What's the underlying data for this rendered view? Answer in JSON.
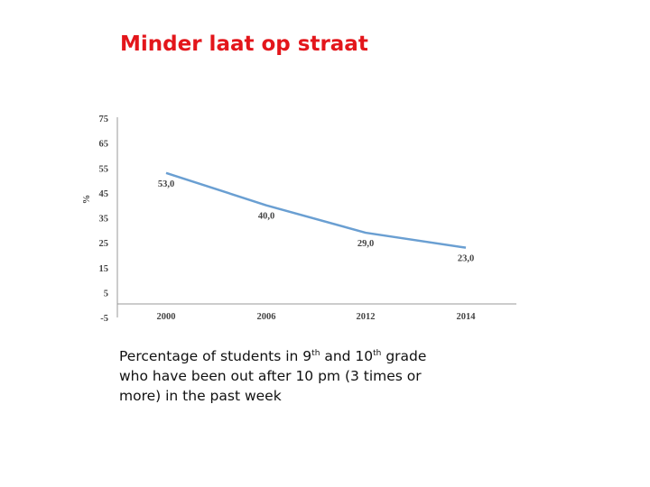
{
  "slide": {
    "title": "Minder laat op straat"
  },
  "caption": {
    "part1": "Percentage of students in 9",
    "sup1": "th",
    "part2": " and 10",
    "sup2": "th",
    "part3": " grade who have been out after 10 pm (3 times or more) in the past week"
  },
  "chart_data": {
    "type": "line",
    "title": "",
    "xlabel": "",
    "ylabel": "%",
    "categories": [
      "2000",
      "2006",
      "2012",
      "2014"
    ],
    "series": [
      {
        "values": [
          53.0,
          40.0,
          29.0,
          23.0
        ],
        "labels": [
          "53,0",
          "40,0",
          "29,0",
          "23,0"
        ]
      }
    ],
    "yticks": [
      "75",
      "65",
      "55",
      "45",
      "35",
      "25",
      "15",
      "5",
      "-5"
    ],
    "ylim": [
      -5,
      75
    ],
    "grid": false,
    "line_color": "#6a9fd2",
    "axis_color": "#999999"
  }
}
